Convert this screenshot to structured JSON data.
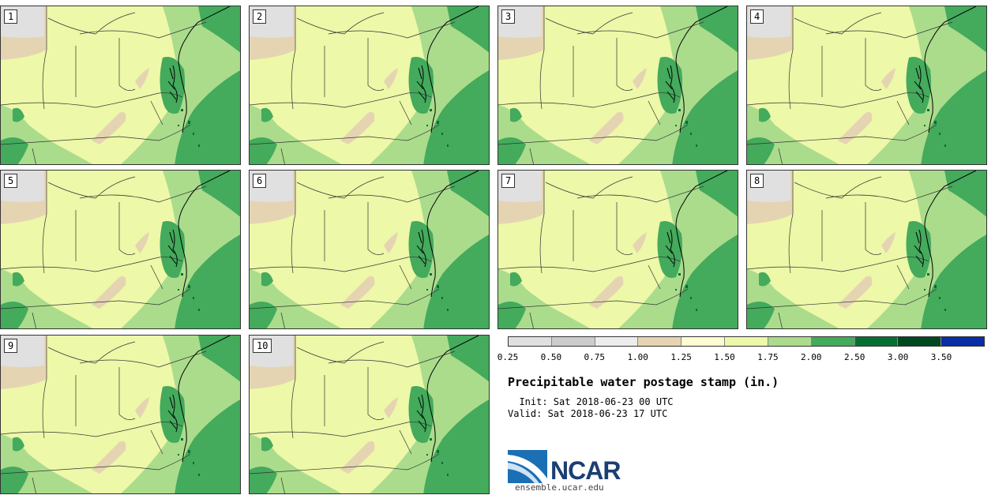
{
  "members": [
    "1",
    "2",
    "3",
    "4",
    "5",
    "6",
    "7",
    "8",
    "9",
    "10"
  ],
  "colorbar": {
    "colors": [
      "#e0e0e0",
      "#cccccc",
      "#ededed",
      "#e5d4b2",
      "#fdfdd2",
      "#edf8a8",
      "#aadc8c",
      "#44aa5c",
      "#067030",
      "#004822",
      "#0a2ca6"
    ],
    "ticks": [
      "0.25",
      "0.50",
      "0.75",
      "1.00",
      "1.25",
      "1.50",
      "1.75",
      "2.00",
      "2.50",
      "3.00",
      "3.50"
    ]
  },
  "title": "Precipitable water postage stamp (in.)",
  "init_line": "  Init: Sat 2018-06-23 00 UTC",
  "valid_line": "Valid: Sat 2018-06-23 17 UTC",
  "logo_text": "NCAR",
  "site": "ensemble.ucar.edu"
}
